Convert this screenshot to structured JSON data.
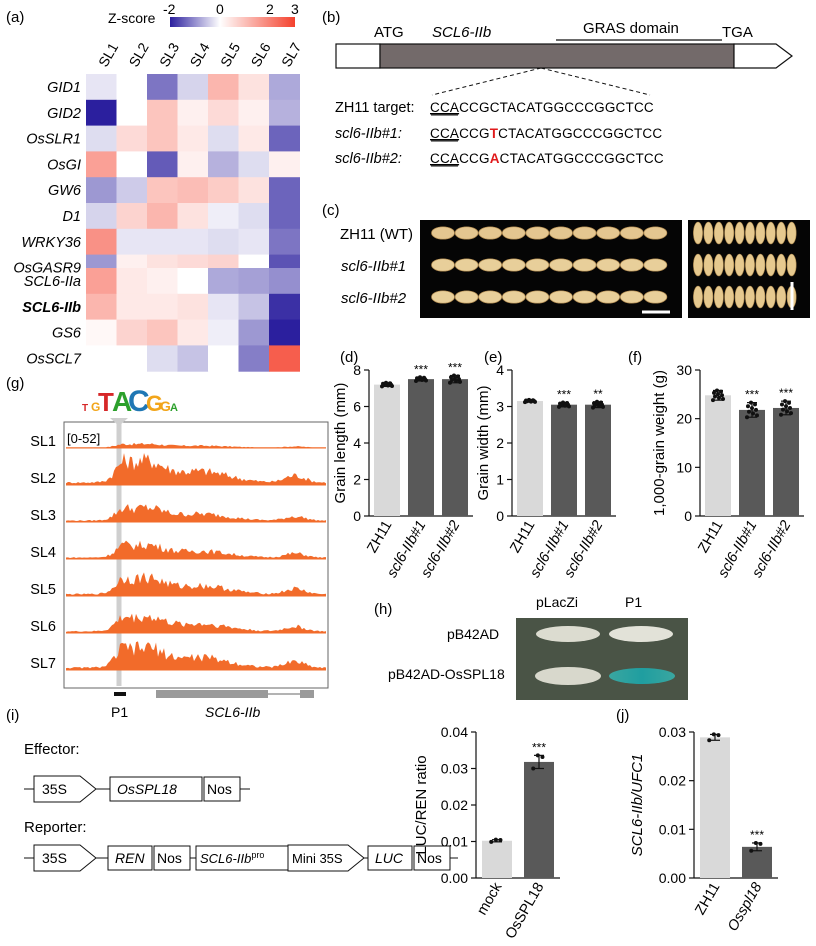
{
  "panels": {
    "a": "(a)",
    "b": "(b)",
    "c": "(c)",
    "d": "(d)",
    "e": "(e)",
    "f": "(f)",
    "g": "(g)",
    "h": "(h)",
    "i": "(i)",
    "j": "(j)"
  },
  "heatmap": {
    "legend_title": "Z-score",
    "legend_ticks": [
      "-2",
      "0",
      "2",
      "3"
    ],
    "columns": [
      "SL1",
      "SL2",
      "SL3",
      "SL4",
      "SL5",
      "SL6",
      "SL7"
    ],
    "genes_top": [
      "GID1",
      "GID2",
      "OsSLR1",
      "OsGI",
      "GW6",
      "D1",
      "WRKY36",
      "OsGASR9"
    ],
    "genes_bottom": [
      "SCL6-IIa",
      "SCL6-IIb",
      "GS6",
      "OsSCL7"
    ],
    "values_top": [
      [
        -0.3,
        0.0,
        -1.6,
        -0.5,
        1.0,
        0.4,
        -1.0
      ],
      [
        -2.6,
        0.0,
        0.8,
        0.2,
        0.5,
        0.2,
        -0.9
      ],
      [
        -0.4,
        0.5,
        0.8,
        0.3,
        -0.4,
        0.3,
        -1.8
      ],
      [
        1.3,
        0.0,
        -1.9,
        0.2,
        -0.9,
        -0.4,
        0.2
      ],
      [
        -1.2,
        -0.6,
        0.8,
        0.9,
        0.7,
        0.4,
        -1.8
      ],
      [
        -0.5,
        0.6,
        1.0,
        0.4,
        -0.2,
        -0.4,
        -1.8
      ],
      [
        1.5,
        -0.3,
        -0.3,
        -0.3,
        -0.4,
        -0.3,
        -1.6
      ],
      [
        -1.2,
        0.2,
        0.4,
        0.5,
        0.6,
        0.0,
        -2.0
      ]
    ],
    "values_bottom": [
      [
        1.3,
        0.3,
        0.2,
        0.0,
        -1.0,
        -1.1,
        -1.3
      ],
      [
        1.0,
        0.3,
        0.3,
        0.4,
        -0.3,
        -0.7,
        -2.4
      ],
      [
        0.1,
        0.6,
        0.8,
        0.3,
        -0.2,
        -1.2,
        -2.6
      ],
      [
        0.0,
        0.0,
        -0.4,
        -0.7,
        0.0,
        -1.5,
        2.2
      ]
    ]
  },
  "gene_model": {
    "atg": "ATG",
    "gene": "SCL6-IIb",
    "domain": "GRAS domain",
    "tga": "TGA",
    "rows": [
      {
        "label": "ZH11 target:",
        "pam": "CCA",
        "pre": "CCGCTACATGGCCCGGCTCC",
        "mut": "",
        "post": ""
      },
      {
        "label": "scl6-IIb#1:",
        "pam": "CCA",
        "pre": "CCG",
        "mut": "T",
        "post": "CTACATGGCCCGGCTCC"
      },
      {
        "label": "scl6-IIb#2:",
        "pam": "CCA",
        "pre": "CCG",
        "mut": "A",
        "post": "CTACATGGCCCGGCTCC"
      }
    ],
    "mut_color": "#e0191b"
  },
  "grain_photo": {
    "lines": [
      "ZH11 (WT)",
      "scl6-IIb#1",
      "scl6-IIb#2"
    ]
  },
  "chart_data": [
    {
      "id": "d",
      "type": "bar",
      "ylabel": "Grain length (mm)",
      "ylim": [
        0,
        8
      ],
      "yticks": [
        0,
        2,
        4,
        6,
        8
      ],
      "categories": [
        "ZH11",
        "scl6-IIb#1",
        "scl6-IIb#2"
      ],
      "values": [
        7.2,
        7.5,
        7.5
      ],
      "errors": [
        0.1,
        0.1,
        0.2
      ],
      "sig": [
        "",
        "***",
        "***"
      ]
    },
    {
      "id": "e",
      "type": "bar",
      "ylabel": "Grain width (mm)",
      "ylim": [
        0,
        4
      ],
      "yticks": [
        0,
        1,
        2,
        3,
        4
      ],
      "categories": [
        "ZH11",
        "scl6-IIb#1",
        "scl6-IIb#2"
      ],
      "values": [
        3.15,
        3.05,
        3.05
      ],
      "errors": [
        0.03,
        0.06,
        0.08
      ],
      "sig": [
        "",
        "***",
        "**"
      ]
    },
    {
      "id": "f",
      "type": "bar",
      "ylabel": "1,000-grain weight (g)",
      "ylim": [
        0,
        30
      ],
      "yticks": [
        0,
        10,
        20,
        30
      ],
      "categories": [
        "ZH11",
        "scl6-IIb#1",
        "scl6-IIb#2"
      ],
      "values": [
        24.8,
        21.8,
        22.2
      ],
      "errors": [
        1.0,
        1.5,
        1.4
      ],
      "sig": [
        "",
        "***",
        "***"
      ]
    },
    {
      "id": "i",
      "type": "bar",
      "ylabel": "LUC/REN ratio",
      "ylim": [
        0,
        0.04
      ],
      "yticks": [
        0.0,
        0.01,
        0.02,
        0.03,
        0.04
      ],
      "ytick_labels": [
        "0.00",
        "0.01",
        "0.02",
        "0.03",
        "0.04"
      ],
      "categories": [
        "mock",
        "OsSPL18"
      ],
      "values": [
        0.0102,
        0.0318
      ],
      "errors": [
        0.0003,
        0.0018
      ],
      "sig": [
        "",
        "***"
      ]
    },
    {
      "id": "j",
      "type": "bar",
      "ylabel": "SCL6-IIb/UFC1",
      "ylim": [
        0,
        0.03
      ],
      "yticks": [
        0.0,
        0.01,
        0.02,
        0.03
      ],
      "ytick_labels": [
        "0.00",
        "0.01",
        "0.02",
        "0.03"
      ],
      "categories": [
        "ZH11",
        "Osspl18"
      ],
      "values": [
        0.0289,
        0.0064
      ],
      "errors": [
        0.0006,
        0.0008
      ],
      "sig": [
        "",
        "***"
      ]
    }
  ],
  "tracks": {
    "range_label": "[0-52]",
    "samples": [
      "SL1",
      "SL2",
      "SL3",
      "SL4",
      "SL5",
      "SL6",
      "SL7"
    ],
    "p1_label": "P1",
    "gene_label": "SCL6-IIb",
    "track_color": "#f26b2a"
  },
  "y1h": {
    "columns": [
      "pLacZi",
      "P1"
    ],
    "rows": [
      "pB42AD",
      "pB42AD-OsSPL18"
    ]
  },
  "constructs": {
    "effector_title": "Effector:",
    "effector": [
      "35S",
      "OsSPL18",
      "Nos"
    ],
    "reporter_title": "Reporter:",
    "reporter": [
      "35S",
      "REN",
      "Nos",
      "SCL6-IIb",
      "pro",
      "Mini 35S",
      "LUC",
      "Nos"
    ]
  },
  "colors": {
    "bar_light": "#d9d9d9",
    "bar_dark": "#595959",
    "heat_low": "#2b1f9e",
    "heat_high": "#f4412d"
  }
}
